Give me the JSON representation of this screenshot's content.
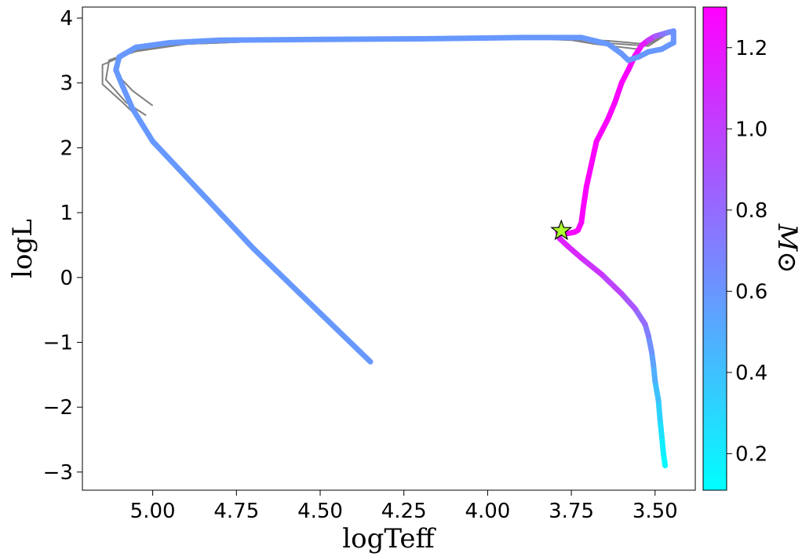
{
  "chart_data": {
    "type": "line",
    "xlabel": "logTeff",
    "ylabel": "logL",
    "xlim": [
      5.21,
      3.38
    ],
    "ylim": [
      -3.28,
      4.17
    ],
    "x_ticks": [
      5.0,
      4.75,
      4.5,
      4.25,
      4.0,
      3.75,
      3.5
    ],
    "x_tick_labels": [
      "5.00",
      "4.75",
      "4.50",
      "4.25",
      "4.00",
      "3.75",
      "3.50"
    ],
    "y_ticks": [
      4,
      3,
      2,
      1,
      0,
      -1,
      -2,
      -3
    ],
    "y_tick_labels": [
      "4",
      "3",
      "2",
      "1",
      "0",
      "−1",
      "−2",
      "−3"
    ],
    "grid": false,
    "colorbar": {
      "label": "M⊙",
      "range": [
        0.11,
        1.3
      ],
      "ticks": [
        0.2,
        0.4,
        0.6,
        0.8,
        1.0,
        1.2
      ],
      "tick_labels": [
        "0.2",
        "0.4",
        "0.6",
        "0.8",
        "1.0",
        "1.2"
      ],
      "colormap": [
        "#00ffff",
        "#ff00ff"
      ]
    },
    "background_tracks_color": "#808080",
    "background_tracks": [
      [
        [
          3.45,
          3.81
        ],
        [
          3.53,
          3.6
        ],
        [
          3.64,
          3.65
        ],
        [
          3.75,
          3.67
        ],
        [
          3.9,
          3.69
        ],
        [
          4.2,
          3.68
        ],
        [
          4.6,
          3.66
        ],
        [
          4.9,
          3.6
        ],
        [
          5.03,
          3.52
        ],
        [
          5.1,
          3.4
        ],
        [
          5.11,
          3.15
        ],
        [
          5.06,
          2.88
        ],
        [
          5.0,
          2.65
        ]
      ],
      [
        [
          3.45,
          3.8
        ],
        [
          3.52,
          3.57
        ],
        [
          3.66,
          3.62
        ],
        [
          3.75,
          3.67
        ],
        [
          3.9,
          3.69
        ],
        [
          4.2,
          3.68
        ],
        [
          4.6,
          3.66
        ],
        [
          4.9,
          3.6
        ],
        [
          5.05,
          3.5
        ],
        [
          5.13,
          3.35
        ],
        [
          5.14,
          3.05
        ],
        [
          5.08,
          2.7
        ],
        [
          5.02,
          2.5
        ]
      ],
      [
        [
          3.45,
          3.79
        ],
        [
          3.55,
          3.52
        ],
        [
          3.68,
          3.6
        ],
        [
          3.75,
          3.66
        ],
        [
          3.9,
          3.69
        ],
        [
          4.2,
          3.68
        ],
        [
          4.6,
          3.66
        ],
        [
          4.9,
          3.6
        ],
        [
          5.06,
          3.48
        ],
        [
          5.15,
          3.28
        ],
        [
          5.15,
          2.98
        ],
        [
          5.09,
          2.7
        ],
        [
          5.04,
          2.45
        ]
      ]
    ],
    "series": [
      {
        "x": [
          3.47,
          3.475,
          3.48,
          3.485,
          3.49,
          3.5,
          3.505,
          3.51,
          3.52,
          3.53,
          3.56,
          3.6,
          3.66,
          3.72,
          3.76,
          3.785,
          3.79,
          3.785,
          3.78,
          3.775,
          3.76,
          3.74,
          3.73,
          3.72,
          3.715,
          3.705,
          3.69,
          3.675,
          3.66,
          3.64,
          3.62,
          3.6,
          3.58,
          3.56,
          3.54,
          3.52,
          3.5,
          3.48,
          3.46,
          3.445,
          3.445,
          3.46,
          3.48,
          3.52,
          3.55,
          3.58,
          3.6,
          3.64,
          3.72,
          3.9,
          4.2,
          4.5,
          4.8,
          4.95,
          5.05,
          5.1,
          5.11,
          5.09,
          5.06,
          5.0,
          4.9,
          4.8,
          4.7,
          4.6,
          4.5,
          4.4,
          4.35
        ],
        "y": [
          -2.9,
          -2.72,
          -2.45,
          -2.2,
          -1.9,
          -1.6,
          -1.35,
          -1.15,
          -0.9,
          -0.72,
          -0.48,
          -0.25,
          0.05,
          0.3,
          0.48,
          0.6,
          0.7,
          0.75,
          0.73,
          0.7,
          0.68,
          0.7,
          0.73,
          0.85,
          1.05,
          1.4,
          1.75,
          2.1,
          2.25,
          2.45,
          2.7,
          3.0,
          3.2,
          3.42,
          3.58,
          3.66,
          3.72,
          3.75,
          3.78,
          3.8,
          3.62,
          3.58,
          3.52,
          3.48,
          3.4,
          3.35,
          3.45,
          3.6,
          3.7,
          3.7,
          3.68,
          3.67,
          3.66,
          3.62,
          3.55,
          3.4,
          3.2,
          2.95,
          2.6,
          2.1,
          1.55,
          1.0,
          0.45,
          -0.05,
          -0.55,
          -1.05,
          -1.3
        ],
        "mass": [
          0.12,
          0.16,
          0.22,
          0.28,
          0.35,
          0.45,
          0.52,
          0.58,
          0.68,
          0.75,
          0.85,
          0.95,
          1.02,
          1.1,
          1.14,
          1.15,
          1.15,
          1.18,
          1.2,
          1.22,
          1.24,
          1.26,
          1.27,
          1.28,
          1.28,
          1.28,
          1.28,
          1.28,
          1.28,
          1.28,
          1.28,
          1.28,
          1.28,
          1.28,
          1.25,
          1.1,
          0.95,
          0.8,
          0.7,
          0.62,
          0.6,
          0.59,
          0.59,
          0.59,
          0.59,
          0.59,
          0.59,
          0.59,
          0.59,
          0.59,
          0.59,
          0.59,
          0.59,
          0.59,
          0.59,
          0.59,
          0.59,
          0.59,
          0.59,
          0.59,
          0.59,
          0.59,
          0.59,
          0.59,
          0.59,
          0.59,
          0.59
        ]
      }
    ],
    "marker": {
      "x": 3.78,
      "y": 0.72,
      "shape": "star",
      "color": "#adff2f"
    }
  }
}
